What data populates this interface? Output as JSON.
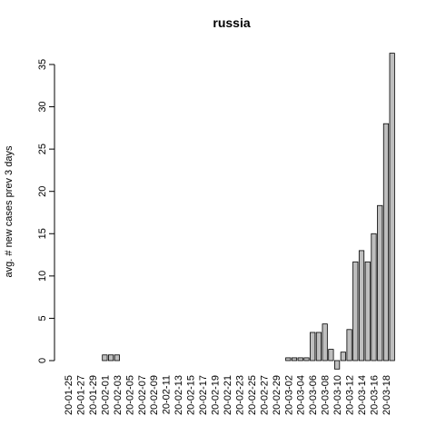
{
  "chart_data": {
    "type": "bar",
    "title": "russia",
    "y_label": "avg. # new cases prev  3  days",
    "categories": [
      "20-01-25",
      null,
      "20-01-27",
      null,
      "20-01-29",
      null,
      "20-02-01",
      null,
      "20-02-03",
      null,
      "20-02-05",
      null,
      "20-02-07",
      null,
      "20-02-09",
      null,
      "20-02-11",
      null,
      "20-02-13",
      null,
      "20-02-15",
      null,
      "20-02-17",
      null,
      "20-02-19",
      null,
      "20-02-21",
      null,
      "20-02-23",
      null,
      "20-02-25",
      null,
      "20-02-27",
      null,
      "20-02-29",
      null,
      "20-03-02",
      null,
      "20-03-04",
      null,
      "20-03-06",
      null,
      "20-03-08",
      null,
      "20-03-10",
      null,
      "20-03-12",
      null,
      "20-03-14",
      null,
      "20-03-16",
      null,
      "20-03-18",
      null
    ],
    "values": [
      0,
      0,
      0,
      0,
      0,
      0,
      0.67,
      0.67,
      0.67,
      0,
      0,
      0,
      0,
      0,
      0,
      0,
      0,
      0,
      0,
      0,
      0,
      0,
      0,
      0,
      0,
      0,
      0,
      0,
      0,
      0,
      0,
      0,
      0,
      0,
      0,
      0,
      0.33,
      0.33,
      0.33,
      0.33,
      3.33,
      3.33,
      4.33,
      1.33,
      -1,
      1,
      3.67,
      11.67,
      13,
      11.67,
      15,
      18.33,
      28,
      36.33
    ],
    "color": "#bebebe",
    "ylim": [
      -1,
      36.33
    ],
    "yticks": [
      0,
      5,
      10,
      15,
      20,
      25,
      30,
      35
    ]
  }
}
